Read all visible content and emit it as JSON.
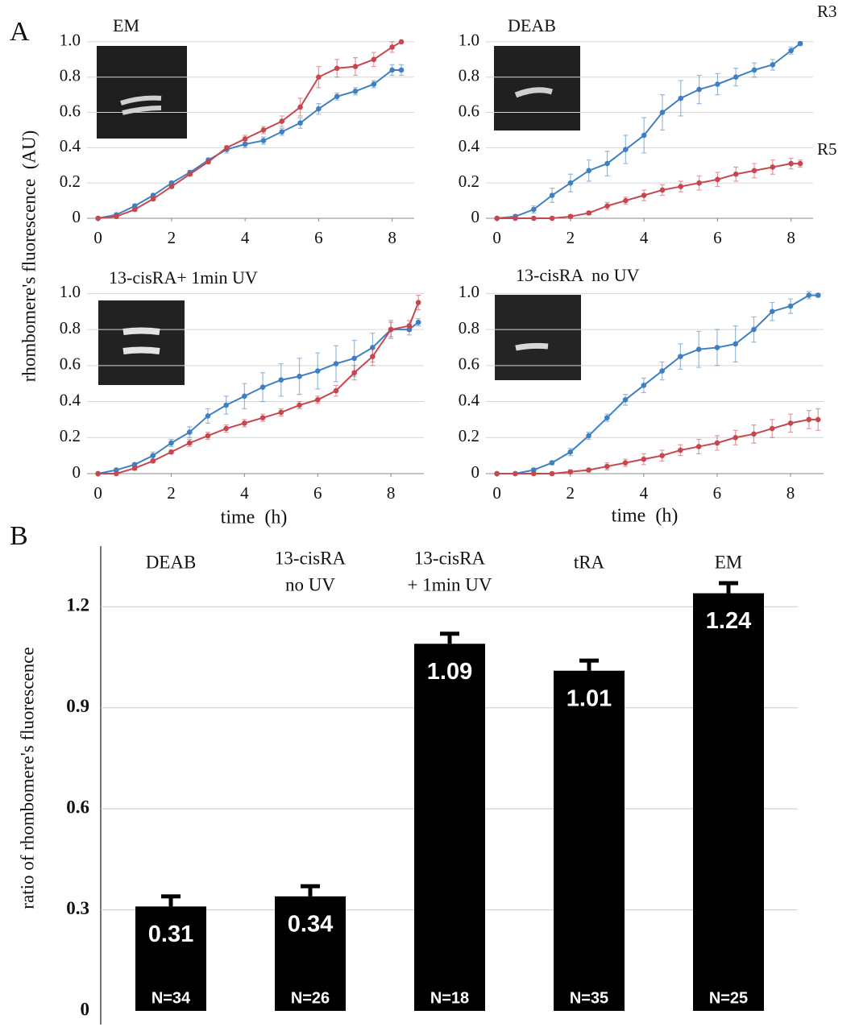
{
  "figure": {
    "panel_a": "A",
    "panel_b": "B",
    "ylabel_a": "rhombomere's fluorescence  (AU)"
  },
  "chart_data": [
    {
      "type": "line",
      "title": "EM",
      "x": [
        0,
        0.5,
        1,
        1.5,
        2,
        2.5,
        3,
        3.5,
        4,
        4.5,
        5,
        5.5,
        6,
        6.5,
        7,
        7.5,
        8,
        8.25
      ],
      "series": [
        {
          "color": "#3f80c2",
          "values": [
            0,
            0.02,
            0.07,
            0.13,
            0.2,
            0.26,
            0.33,
            0.39,
            0.42,
            0.44,
            0.49,
            0.54,
            0.62,
            0.69,
            0.72,
            0.76,
            0.84,
            0.84
          ],
          "errors": [
            0,
            0.01,
            0.01,
            0.01,
            0.01,
            0.01,
            0.01,
            0.02,
            0.02,
            0.02,
            0.02,
            0.03,
            0.03,
            0.02,
            0.02,
            0.02,
            0.03,
            0.03
          ]
        },
        {
          "color": "#c8474f",
          "values": [
            0,
            0.01,
            0.05,
            0.11,
            0.18,
            0.25,
            0.32,
            0.4,
            0.45,
            0.5,
            0.55,
            0.63,
            0.8,
            0.85,
            0.86,
            0.9,
            0.97,
            1.0
          ],
          "errors": [
            0,
            0.01,
            0.01,
            0.01,
            0.01,
            0.01,
            0.01,
            0.01,
            0.02,
            0.02,
            0.03,
            0.05,
            0.06,
            0.05,
            0.05,
            0.04,
            0.03,
            0
          ]
        }
      ],
      "xlim": [
        -0.3,
        8.6
      ],
      "ylim": [
        0,
        1.1
      ],
      "xticks": [
        0,
        2,
        4,
        6,
        8
      ],
      "yticks": [
        0,
        0.2,
        0.4,
        0.6,
        0.8,
        {
          "value": 1,
          "label": "1.0"
        }
      ],
      "grid": true
    },
    {
      "type": "line",
      "title": "DEAB",
      "x": [
        0,
        0.5,
        1,
        1.5,
        2,
        2.5,
        3,
        3.5,
        4,
        4.5,
        5,
        5.5,
        6,
        6.5,
        7,
        7.5,
        8,
        8.25
      ],
      "series": [
        {
          "name": "R3",
          "color": "#3f80c2",
          "values": [
            0,
            0.01,
            0.05,
            0.13,
            0.2,
            0.27,
            0.31,
            0.39,
            0.47,
            0.6,
            0.68,
            0.73,
            0.76,
            0.8,
            0.84,
            0.87,
            0.95,
            0.99
          ],
          "errors": [
            0,
            0.01,
            0.02,
            0.04,
            0.05,
            0.06,
            0.07,
            0.08,
            0.1,
            0.1,
            0.1,
            0.08,
            0.06,
            0.05,
            0.04,
            0.03,
            0.02,
            0.01
          ]
        },
        {
          "name": "R5",
          "color": "#c8474f",
          "values": [
            0,
            0,
            0,
            0,
            0.01,
            0.03,
            0.07,
            0.1,
            0.13,
            0.16,
            0.18,
            0.2,
            0.22,
            0.25,
            0.27,
            0.29,
            0.31,
            0.31
          ],
          "errors": [
            0,
            0,
            0,
            0,
            0.01,
            0.01,
            0.02,
            0.02,
            0.03,
            0.03,
            0.03,
            0.04,
            0.04,
            0.04,
            0.04,
            0.04,
            0.03,
            0.02
          ]
        }
      ],
      "xlim": [
        -0.3,
        8.6
      ],
      "ylim": [
        0,
        1.1
      ],
      "xticks": [
        0,
        2,
        4,
        6,
        8
      ],
      "yticks": [
        0,
        0.2,
        0.4,
        0.6,
        0.8,
        {
          "value": 1,
          "label": "1.0"
        }
      ],
      "grid": true
    },
    {
      "type": "line",
      "title": "13-cisRA+ 1min UV",
      "xlabel": "time  (h)",
      "x": [
        0,
        0.5,
        1,
        1.5,
        2,
        2.5,
        3,
        3.5,
        4,
        4.5,
        5,
        5.5,
        6,
        6.5,
        7,
        7.5,
        8,
        8.5,
        8.75
      ],
      "series": [
        {
          "color": "#3f80c2",
          "values": [
            0,
            0.02,
            0.05,
            0.1,
            0.17,
            0.23,
            0.32,
            0.38,
            0.43,
            0.48,
            0.52,
            0.54,
            0.57,
            0.61,
            0.64,
            0.7,
            0.8,
            0.8,
            0.84
          ],
          "errors": [
            0,
            0.01,
            0.01,
            0.02,
            0.02,
            0.03,
            0.04,
            0.05,
            0.07,
            0.08,
            0.09,
            0.1,
            0.1,
            0.1,
            0.1,
            0.08,
            0.05,
            0.03,
            0.02
          ]
        },
        {
          "color": "#c8474f",
          "values": [
            0,
            0,
            0.03,
            0.07,
            0.12,
            0.17,
            0.21,
            0.25,
            0.28,
            0.31,
            0.34,
            0.38,
            0.41,
            0.46,
            0.56,
            0.65,
            0.8,
            0.82,
            0.95
          ],
          "errors": [
            0,
            0,
            0.01,
            0.01,
            0.01,
            0.02,
            0.02,
            0.02,
            0.02,
            0.02,
            0.02,
            0.02,
            0.02,
            0.03,
            0.04,
            0.05,
            0.04,
            0.03,
            0.04
          ]
        }
      ],
      "xlim": [
        -0.3,
        8.9
      ],
      "ylim": [
        0,
        1.1
      ],
      "xticks": [
        0,
        2,
        4,
        6,
        8
      ],
      "yticks": [
        0,
        0.2,
        0.4,
        0.6,
        0.8,
        {
          "value": 1,
          "label": "1.0"
        }
      ],
      "grid": true
    },
    {
      "type": "line",
      "title": "13-cisRA  no UV",
      "xlabel": "time  (h)",
      "x": [
        0,
        0.5,
        1,
        1.5,
        2,
        2.5,
        3,
        3.5,
        4,
        4.5,
        5,
        5.5,
        6,
        6.5,
        7,
        7.5,
        8,
        8.5,
        8.75
      ],
      "series": [
        {
          "color": "#3f80c2",
          "values": [
            0,
            0,
            0.02,
            0.06,
            0.12,
            0.21,
            0.31,
            0.41,
            0.49,
            0.57,
            0.65,
            0.69,
            0.7,
            0.72,
            0.8,
            0.9,
            0.93,
            0.99,
            0.99
          ],
          "errors": [
            0,
            0,
            0.01,
            0.01,
            0.02,
            0.02,
            0.02,
            0.03,
            0.04,
            0.05,
            0.07,
            0.1,
            0.1,
            0.1,
            0.07,
            0.05,
            0.04,
            0.02,
            0.01
          ]
        },
        {
          "color": "#c8474f",
          "values": [
            0,
            0,
            0,
            0,
            0.01,
            0.02,
            0.04,
            0.06,
            0.08,
            0.1,
            0.13,
            0.15,
            0.17,
            0.2,
            0.22,
            0.25,
            0.28,
            0.3,
            0.3
          ],
          "errors": [
            0,
            0,
            0,
            0,
            0.01,
            0.01,
            0.02,
            0.02,
            0.03,
            0.03,
            0.03,
            0.04,
            0.04,
            0.04,
            0.05,
            0.05,
            0.05,
            0.05,
            0.06
          ]
        }
      ],
      "xlim": [
        -0.3,
        8.9
      ],
      "ylim": [
        0,
        1.1
      ],
      "xticks": [
        0,
        2,
        4,
        6,
        8
      ],
      "yticks": [
        0,
        0.2,
        0.4,
        0.6,
        0.8,
        {
          "value": 1,
          "label": "1.0"
        }
      ],
      "grid": true
    },
    {
      "type": "bar",
      "ylabel": "ratio of rhombomere's fluorescence",
      "categories": [
        [
          "DEAB"
        ],
        [
          "13-cisRA",
          "no UV"
        ],
        [
          "13-cisRA",
          "+ 1min UV"
        ],
        [
          "tRA"
        ],
        [
          "EM"
        ]
      ],
      "values": [
        0.31,
        0.34,
        1.09,
        1.01,
        1.24
      ],
      "errors": [
        0.03,
        0.03,
        0.03,
        0.03,
        0.03
      ],
      "n_labels": [
        "N=34",
        "N=26",
        "N=18",
        "N=35",
        "N=25"
      ],
      "color": "#000000",
      "ylim": [
        0,
        1.38
      ],
      "yticks": [
        0,
        0.3,
        0.6,
        0.9,
        1.2
      ],
      "grid": true
    }
  ]
}
